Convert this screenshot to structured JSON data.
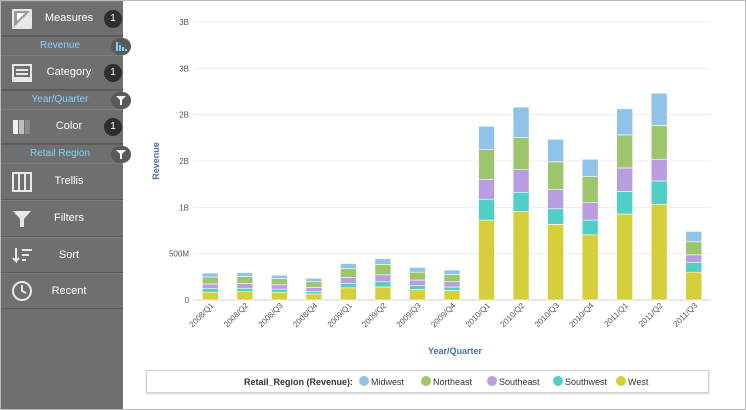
{
  "sidebar": {
    "measures": {
      "label": "Measures",
      "count": "1",
      "sub": "Revenue"
    },
    "category": {
      "label": "Category",
      "count": "1",
      "sub": "Year/Quarter"
    },
    "color": {
      "label": "Color",
      "count": "1",
      "sub": "Retail Region"
    },
    "trellis": {
      "label": "Trellis"
    },
    "filters": {
      "label": "Filters"
    },
    "sort": {
      "label": "Sort"
    },
    "recent": {
      "label": "Recent"
    }
  },
  "chart_data": {
    "type": "bar",
    "stacked": true,
    "xlabel": "Year/Quarter",
    "ylabel": "Revenue",
    "y_tick_labels": [
      "0",
      "500M",
      "1B",
      "2B",
      "2B",
      "3B",
      "3B"
    ],
    "ylim": [
      0,
      3200
    ],
    "y_unit": "millions",
    "grid": true,
    "legend_title": "Retail_Region (Revenue):",
    "legend_placement": "bottom",
    "categories": [
      "2008/Q1",
      "2008/Q2",
      "2008/Q3",
      "2008/Q4",
      "2009/Q1",
      "2009/Q2",
      "2009/Q3",
      "2009/Q4",
      "2010/Q1",
      "2010/Q2",
      "2010/Q3",
      "2010/Q4",
      "2011/Q1",
      "2011/Q2",
      "2011/Q3"
    ],
    "series": [
      {
        "name": "West",
        "color": "#d4cf3a",
        "values": [
          90,
          95,
          90,
          70,
          140,
          150,
          120,
          110,
          920,
          1020,
          870,
          750,
          990,
          1100,
          320
        ]
      },
      {
        "name": "Southwest",
        "color": "#4fcfc5",
        "values": [
          40,
          40,
          35,
          30,
          50,
          60,
          45,
          40,
          240,
          220,
          180,
          170,
          260,
          270,
          110
        ]
      },
      {
        "name": "Southeast",
        "color": "#b89ee0",
        "values": [
          55,
          55,
          50,
          45,
          70,
          80,
          65,
          60,
          230,
          260,
          220,
          200,
          270,
          250,
          90
        ]
      },
      {
        "name": "Northeast",
        "color": "#9dc56c",
        "values": [
          80,
          80,
          70,
          65,
          100,
          120,
          90,
          85,
          340,
          370,
          320,
          300,
          380,
          390,
          150
        ]
      },
      {
        "name": "Midwest",
        "color": "#8fc4e8",
        "values": [
          45,
          45,
          40,
          40,
          60,
          65,
          55,
          50,
          270,
          350,
          260,
          200,
          300,
          370,
          120
        ]
      }
    ]
  }
}
